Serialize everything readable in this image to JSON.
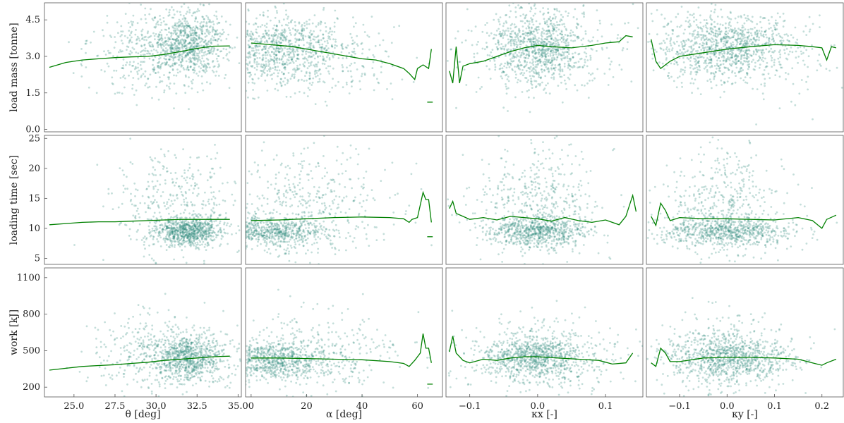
{
  "chart_data": {
    "type": "scatter",
    "layout": "3x4 grid, shared x per column, shared y per row",
    "colors": {
      "points": "#2a8a7a",
      "trend": "#008000"
    },
    "grid": false,
    "columns": [
      {
        "xlabel": "θ [deg]",
        "xlim": [
          23.2,
          35.2
        ],
        "xticks": [
          25.0,
          27.5,
          30.0,
          32.5,
          35.0
        ],
        "xtick_labels": [
          "25.0",
          "27.5",
          "30.0",
          "32.5",
          "35.0"
        ]
      },
      {
        "xlabel": "α [deg]",
        "xlim": [
          -2,
          69
        ],
        "xticks": [
          0,
          20,
          40,
          60
        ],
        "xtick_labels": [
          "0",
          "20",
          "40",
          "60"
        ]
      },
      {
        "xlabel": "κx [-]",
        "xlim": [
          -0.135,
          0.155
        ],
        "xticks": [
          -0.1,
          0.0,
          0.1
        ],
        "xtick_labels": [
          "−0.1",
          "0.0",
          "0.1"
        ]
      },
      {
        "xlabel": "κy [-]",
        "xlim": [
          -0.17,
          0.245
        ],
        "xticks": [
          -0.1,
          0.0,
          0.1,
          0.2
        ],
        "xtick_labels": [
          "−0.1",
          "0.0",
          "0.1",
          "0.2"
        ]
      }
    ],
    "rows": [
      {
        "ylabel": "load mass [tonne]",
        "ylim": [
          -0.1,
          5.2
        ],
        "yticks": [
          0.0,
          1.5,
          3.0,
          4.5
        ],
        "ytick_labels": [
          "0.0",
          "1.5",
          "3.0",
          "4.5"
        ]
      },
      {
        "ylabel": "loading time [sec]",
        "ylim": [
          4,
          25.5
        ],
        "yticks": [
          5,
          10,
          15,
          20,
          25
        ],
        "ytick_labels": [
          "5",
          "10",
          "15",
          "20",
          "25"
        ]
      },
      {
        "ylabel": "work [kJ]",
        "ylim": [
          120,
          1180
        ],
        "yticks": [
          200,
          500,
          800,
          1100
        ],
        "ytick_labels": [
          "200",
          "500",
          "800",
          "1100"
        ]
      }
    ],
    "panels": [
      {
        "row": 0,
        "col": 0,
        "trend": [
          [
            23.5,
            2.55
          ],
          [
            24.5,
            2.75
          ],
          [
            25.5,
            2.85
          ],
          [
            26.5,
            2.9
          ],
          [
            27.5,
            2.95
          ],
          [
            28.5,
            2.98
          ],
          [
            29.5,
            3.0
          ],
          [
            30.5,
            3.08
          ],
          [
            31.5,
            3.2
          ],
          [
            32.5,
            3.33
          ],
          [
            33.5,
            3.42
          ],
          [
            34.5,
            3.43
          ]
        ],
        "cloud": [
          {
            "cx": 32.0,
            "sx": 1.1,
            "cy": 3.5,
            "sy": 0.7,
            "w": 0.7
          },
          {
            "cx": 29.5,
            "sx": 1.8,
            "cy": 3.2,
            "sy": 0.8,
            "w": 0.3
          }
        ]
      },
      {
        "row": 0,
        "col": 1,
        "trend": [
          [
            0,
            3.55
          ],
          [
            5,
            3.5
          ],
          [
            10,
            3.45
          ],
          [
            15,
            3.4
          ],
          [
            20,
            3.3
          ],
          [
            25,
            3.2
          ],
          [
            30,
            3.1
          ],
          [
            35,
            3.0
          ],
          [
            40,
            2.9
          ],
          [
            45,
            2.85
          ],
          [
            50,
            2.7
          ],
          [
            55,
            2.5
          ],
          [
            57,
            2.3
          ],
          [
            59,
            2.05
          ],
          [
            60,
            2.5
          ],
          [
            62,
            2.65
          ],
          [
            64,
            2.5
          ],
          [
            65,
            3.3
          ]
        ],
        "extra_segments": [
          [
            [
              63.5,
              1.12
            ],
            [
              65.5,
              1.12
            ]
          ]
        ],
        "cloud": [
          {
            "cx": 8,
            "sx": 12,
            "cy": 3.3,
            "sy": 0.75,
            "w": 0.75
          },
          {
            "cx": 25,
            "sx": 14,
            "cy": 3.0,
            "sy": 0.8,
            "w": 0.25
          }
        ]
      },
      {
        "row": 0,
        "col": 2,
        "trend": [
          [
            -0.13,
            2.4
          ],
          [
            -0.125,
            1.9
          ],
          [
            -0.12,
            3.4
          ],
          [
            -0.115,
            1.9
          ],
          [
            -0.11,
            2.6
          ],
          [
            -0.1,
            2.7
          ],
          [
            -0.08,
            2.8
          ],
          [
            -0.06,
            3.0
          ],
          [
            -0.04,
            3.2
          ],
          [
            -0.02,
            3.35
          ],
          [
            0.0,
            3.45
          ],
          [
            0.02,
            3.4
          ],
          [
            0.05,
            3.35
          ],
          [
            0.08,
            3.45
          ],
          [
            0.1,
            3.55
          ],
          [
            0.12,
            3.6
          ],
          [
            0.13,
            3.85
          ],
          [
            0.14,
            3.8
          ]
        ],
        "cloud": [
          {
            "cx": 0.0,
            "sx": 0.035,
            "cy": 3.4,
            "sy": 0.7,
            "w": 0.7
          },
          {
            "cx": 0.0,
            "sx": 0.07,
            "cy": 3.2,
            "sy": 0.9,
            "w": 0.3
          }
        ]
      },
      {
        "row": 0,
        "col": 3,
        "trend": [
          [
            -0.16,
            3.7
          ],
          [
            -0.15,
            2.8
          ],
          [
            -0.14,
            2.5
          ],
          [
            -0.12,
            2.8
          ],
          [
            -0.1,
            3.0
          ],
          [
            -0.05,
            3.15
          ],
          [
            0.0,
            3.3
          ],
          [
            0.05,
            3.4
          ],
          [
            0.1,
            3.48
          ],
          [
            0.15,
            3.45
          ],
          [
            0.18,
            3.4
          ],
          [
            0.2,
            3.35
          ],
          [
            0.21,
            2.85
          ],
          [
            0.22,
            3.4
          ],
          [
            0.23,
            3.35
          ]
        ],
        "cloud": [
          {
            "cx": 0.0,
            "sx": 0.07,
            "cy": 3.4,
            "sy": 0.7,
            "w": 0.85
          },
          {
            "cx": 0.05,
            "sx": 0.1,
            "cy": 3.0,
            "sy": 1.0,
            "w": 0.15
          }
        ]
      },
      {
        "row": 1,
        "col": 0,
        "trend": [
          [
            23.5,
            10.6
          ],
          [
            24.5,
            10.8
          ],
          [
            25.5,
            11.0
          ],
          [
            26.5,
            11.1
          ],
          [
            27.5,
            11.1
          ],
          [
            28.5,
            11.2
          ],
          [
            29.5,
            11.3
          ],
          [
            30.5,
            11.4
          ],
          [
            31.5,
            11.5
          ],
          [
            32.5,
            11.5
          ],
          [
            33.5,
            11.5
          ],
          [
            34.5,
            11.5
          ]
        ],
        "cloud": [
          {
            "cx": 32.0,
            "sx": 1.0,
            "cy": 9.5,
            "sy": 1.2,
            "w": 0.65
          },
          {
            "cx": 31.0,
            "sx": 1.8,
            "cy": 14,
            "sy": 4.5,
            "w": 0.35
          }
        ]
      },
      {
        "row": 1,
        "col": 1,
        "trend": [
          [
            0,
            11.3
          ],
          [
            10,
            11.4
          ],
          [
            20,
            11.6
          ],
          [
            30,
            11.8
          ],
          [
            40,
            11.9
          ],
          [
            50,
            11.8
          ],
          [
            55,
            11.6
          ],
          [
            57,
            11.0
          ],
          [
            58,
            11.5
          ],
          [
            60,
            11.8
          ],
          [
            62,
            16.0
          ],
          [
            63,
            14.8
          ],
          [
            64,
            14.8
          ],
          [
            65,
            11.0
          ]
        ],
        "extra_segments": [
          [
            [
              63.5,
              8.6
            ],
            [
              65.5,
              8.6
            ]
          ]
        ],
        "cloud": [
          {
            "cx": 6,
            "sx": 10,
            "cy": 9.5,
            "sy": 1.2,
            "w": 0.6
          },
          {
            "cx": 22,
            "sx": 15,
            "cy": 14,
            "sy": 5,
            "w": 0.4
          }
        ]
      },
      {
        "row": 1,
        "col": 2,
        "trend": [
          [
            -0.13,
            13.3
          ],
          [
            -0.125,
            14.5
          ],
          [
            -0.12,
            12.5
          ],
          [
            -0.11,
            12.0
          ],
          [
            -0.1,
            11.5
          ],
          [
            -0.08,
            11.8
          ],
          [
            -0.06,
            11.4
          ],
          [
            -0.04,
            12.0
          ],
          [
            -0.02,
            11.8
          ],
          [
            0.0,
            11.6
          ],
          [
            0.02,
            11.2
          ],
          [
            0.04,
            11.8
          ],
          [
            0.06,
            11.3
          ],
          [
            0.08,
            11.0
          ],
          [
            0.1,
            11.4
          ],
          [
            0.12,
            10.6
          ],
          [
            0.13,
            12.0
          ],
          [
            0.14,
            15.5
          ],
          [
            0.145,
            12.8
          ]
        ],
        "cloud": [
          {
            "cx": 0.0,
            "sx": 0.035,
            "cy": 9.5,
            "sy": 1.2,
            "w": 0.55
          },
          {
            "cx": 0.0,
            "sx": 0.045,
            "cy": 14,
            "sy": 4.5,
            "w": 0.45
          }
        ]
      },
      {
        "row": 1,
        "col": 3,
        "trend": [
          [
            -0.16,
            12.0
          ],
          [
            -0.15,
            10.5
          ],
          [
            -0.14,
            14.2
          ],
          [
            -0.13,
            13.0
          ],
          [
            -0.12,
            11.3
          ],
          [
            -0.1,
            11.8
          ],
          [
            -0.05,
            11.6
          ],
          [
            0.0,
            11.6
          ],
          [
            0.05,
            11.5
          ],
          [
            0.1,
            11.4
          ],
          [
            0.15,
            11.8
          ],
          [
            0.18,
            11.3
          ],
          [
            0.2,
            10.0
          ],
          [
            0.21,
            11.5
          ],
          [
            0.23,
            12.2
          ]
        ],
        "cloud": [
          {
            "cx": 0.0,
            "sx": 0.07,
            "cy": 9.5,
            "sy": 1.2,
            "w": 0.6
          },
          {
            "cx": 0.0,
            "sx": 0.06,
            "cy": 14,
            "sy": 4.5,
            "w": 0.4
          }
        ]
      },
      {
        "row": 2,
        "col": 0,
        "trend": [
          [
            23.5,
            340
          ],
          [
            24.5,
            355
          ],
          [
            25.5,
            370
          ],
          [
            26.5,
            378
          ],
          [
            27.5,
            385
          ],
          [
            28.5,
            395
          ],
          [
            29.5,
            405
          ],
          [
            30.5,
            420
          ],
          [
            31.5,
            430
          ],
          [
            32.5,
            440
          ],
          [
            33.5,
            450
          ],
          [
            34.5,
            455
          ]
        ],
        "cloud": [
          {
            "cx": 32.0,
            "sx": 1.1,
            "cy": 440,
            "sy": 90,
            "w": 0.65
          },
          {
            "cx": 30.0,
            "sx": 2.0,
            "cy": 470,
            "sy": 170,
            "w": 0.35
          }
        ]
      },
      {
        "row": 2,
        "col": 1,
        "trend": [
          [
            0,
            440
          ],
          [
            10,
            440
          ],
          [
            20,
            435
          ],
          [
            30,
            430
          ],
          [
            40,
            425
          ],
          [
            50,
            410
          ],
          [
            55,
            395
          ],
          [
            57,
            370
          ],
          [
            59,
            420
          ],
          [
            61,
            480
          ],
          [
            62,
            640
          ],
          [
            63,
            520
          ],
          [
            64,
            520
          ],
          [
            65,
            400
          ]
        ],
        "extra_segments": [
          [
            [
              63.5,
              225
            ],
            [
              65.5,
              225
            ]
          ]
        ],
        "cloud": [
          {
            "cx": 7,
            "sx": 11,
            "cy": 420,
            "sy": 80,
            "w": 0.7
          },
          {
            "cx": 25,
            "sx": 15,
            "cy": 460,
            "sy": 170,
            "w": 0.3
          }
        ]
      },
      {
        "row": 2,
        "col": 2,
        "trend": [
          [
            -0.13,
            490
          ],
          [
            -0.125,
            620
          ],
          [
            -0.12,
            480
          ],
          [
            -0.11,
            420
          ],
          [
            -0.1,
            400
          ],
          [
            -0.08,
            430
          ],
          [
            -0.06,
            420
          ],
          [
            -0.04,
            440
          ],
          [
            -0.02,
            450
          ],
          [
            0.0,
            450
          ],
          [
            0.03,
            440
          ],
          [
            0.06,
            430
          ],
          [
            0.09,
            420
          ],
          [
            0.11,
            390
          ],
          [
            0.13,
            400
          ],
          [
            0.14,
            480
          ]
        ],
        "cloud": [
          {
            "cx": -0.005,
            "sx": 0.035,
            "cy": 450,
            "sy": 80,
            "w": 0.6
          },
          {
            "cx": 0.0,
            "sx": 0.06,
            "cy": 460,
            "sy": 160,
            "w": 0.4
          }
        ]
      },
      {
        "row": 2,
        "col": 3,
        "trend": [
          [
            -0.16,
            400
          ],
          [
            -0.15,
            370
          ],
          [
            -0.14,
            520
          ],
          [
            -0.13,
            480
          ],
          [
            -0.12,
            410
          ],
          [
            -0.1,
            410
          ],
          [
            -0.05,
            440
          ],
          [
            0.0,
            445
          ],
          [
            0.05,
            445
          ],
          [
            0.1,
            440
          ],
          [
            0.15,
            430
          ],
          [
            0.18,
            400
          ],
          [
            0.2,
            380
          ],
          [
            0.21,
            400
          ],
          [
            0.23,
            430
          ]
        ],
        "cloud": [
          {
            "cx": 0.0,
            "sx": 0.07,
            "cy": 440,
            "sy": 80,
            "w": 0.6
          },
          {
            "cx": 0.0,
            "sx": 0.06,
            "cy": 460,
            "sy": 170,
            "w": 0.4
          }
        ]
      }
    ]
  }
}
